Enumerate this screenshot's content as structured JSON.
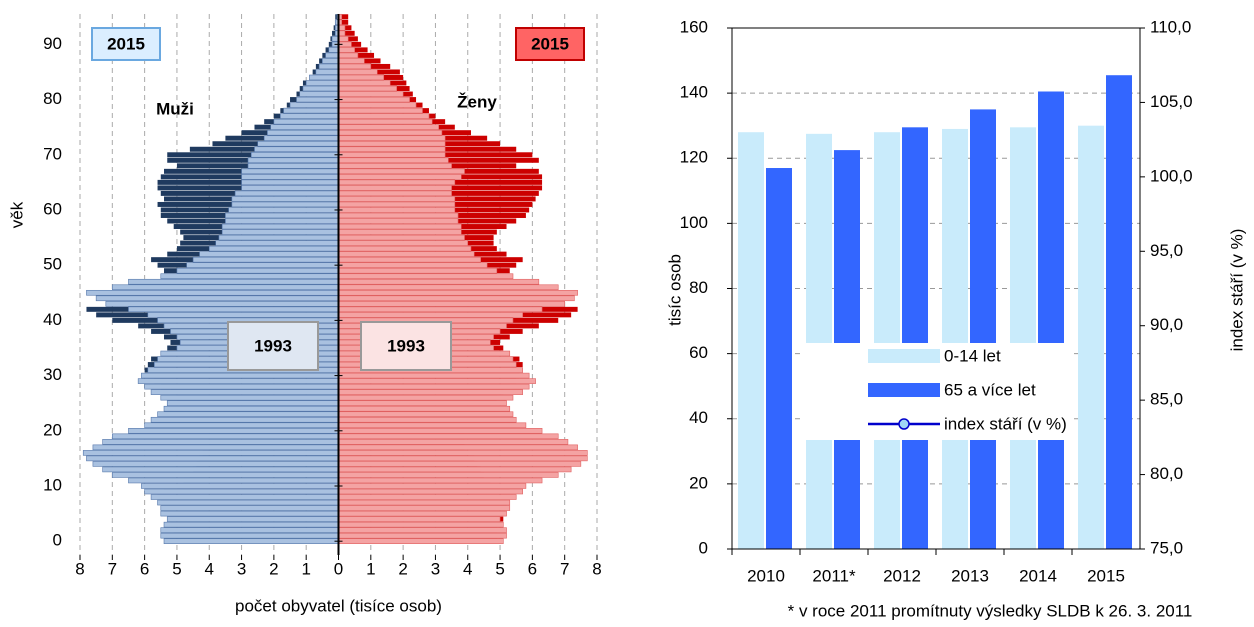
{
  "chart_data": [
    {
      "type": "pyramid",
      "xlabel": "počet obyvatel (tisíce osob)",
      "ylabel": "věk",
      "ylim": [
        -2.5,
        95.5
      ],
      "yticks": [
        0,
        10,
        20,
        30,
        40,
        50,
        60,
        70,
        80,
        90
      ],
      "grid": true,
      "ages": [
        0,
        1,
        2,
        3,
        4,
        5,
        6,
        7,
        8,
        9,
        10,
        11,
        12,
        13,
        14,
        15,
        16,
        17,
        18,
        19,
        20,
        21,
        22,
        23,
        24,
        25,
        26,
        27,
        28,
        29,
        30,
        31,
        32,
        33,
        34,
        35,
        36,
        37,
        38,
        39,
        40,
        41,
        42,
        43,
        44,
        45,
        46,
        47,
        48,
        49,
        50,
        51,
        52,
        53,
        54,
        55,
        56,
        57,
        58,
        59,
        60,
        61,
        62,
        63,
        64,
        65,
        66,
        67,
        68,
        69,
        70,
        71,
        72,
        73,
        74,
        75,
        76,
        77,
        78,
        79,
        80,
        81,
        82,
        83,
        84,
        85,
        86,
        87,
        88,
        89,
        90,
        91,
        92,
        93,
        94,
        95
      ],
      "left": {
        "label": "Muži",
        "xlim": [
          8,
          0
        ],
        "xticks": [
          8,
          7,
          6,
          5,
          4,
          3,
          2,
          1,
          0
        ],
        "series": [
          {
            "name": "2015",
            "color": "#1f3a5f",
            "values": [
              5.3,
              5.2,
              5.1,
              5.2,
              5.3,
              5.4,
              5.5,
              5.5,
              5.6,
              5.4,
              5.0,
              4.8,
              4.6,
              4.5,
              4.4,
              4.3,
              4.2,
              4.0,
              4.0,
              4.0,
              4.1,
              4.2,
              4.4,
              4.5,
              4.6,
              4.8,
              5.0,
              5.2,
              5.5,
              5.7,
              5.9,
              6.0,
              5.9,
              5.8,
              5.5,
              5.3,
              5.2,
              5.4,
              5.8,
              6.2,
              7.0,
              7.5,
              7.8,
              7.2,
              6.3,
              6.0,
              5.6,
              5.3,
              5.2,
              5.4,
              5.6,
              5.8,
              5.3,
              5.0,
              4.9,
              4.8,
              4.9,
              5.1,
              5.3,
              5.5,
              5.5,
              5.6,
              5.4,
              5.5,
              5.6,
              5.6,
              5.5,
              5.4,
              5.0,
              5.3,
              5.3,
              4.6,
              3.9,
              3.5,
              3.0,
              2.6,
              2.3,
              2.0,
              1.8,
              1.6,
              1.5,
              1.3,
              1.2,
              1.1,
              0.9,
              0.8,
              0.7,
              0.6,
              0.5,
              0.4,
              0.3,
              0.25,
              0.2,
              0.15,
              0.1,
              0.1
            ]
          },
          {
            "name": "1993",
            "color": "#a9c1e0",
            "values": [
              5.4,
              5.5,
              5.5,
              5.4,
              5.3,
              5.5,
              5.5,
              5.6,
              5.8,
              6.0,
              6.1,
              6.5,
              7.0,
              7.3,
              7.6,
              7.8,
              7.9,
              7.6,
              7.3,
              7.0,
              6.5,
              6.0,
              5.8,
              5.6,
              5.4,
              5.3,
              5.5,
              5.8,
              6.0,
              6.2,
              6.1,
              5.9,
              5.7,
              5.6,
              5.5,
              5.0,
              4.9,
              5.0,
              5.2,
              5.4,
              5.6,
              5.9,
              6.5,
              7.2,
              7.5,
              7.8,
              7.0,
              6.5,
              5.5,
              5.0,
              4.7,
              4.5,
              4.3,
              4.0,
              3.8,
              3.7,
              3.6,
              3.6,
              3.5,
              3.5,
              3.4,
              3.3,
              3.3,
              3.2,
              3.0,
              3.0,
              3.0,
              3.0,
              2.8,
              2.8,
              2.7,
              2.6,
              2.5,
              2.3,
              2.2,
              2.1,
              2.0,
              1.8,
              1.7,
              1.5,
              1.3,
              1.2,
              1.1,
              1.0,
              0.9,
              0.7,
              0.6,
              0.5,
              0.4,
              0.3,
              0.2,
              0.2,
              0.1,
              0.1,
              0.1,
              0.05
            ]
          }
        ]
      },
      "right": {
        "label": "Ženy",
        "xlim": [
          0,
          8
        ],
        "xticks": [
          1,
          2,
          3,
          4,
          5,
          6,
          7,
          8
        ],
        "series": [
          {
            "name": "2015",
            "color": "#cc0000",
            "values": [
              5.0,
              4.9,
              4.9,
              5.0,
              5.1,
              5.2,
              5.2,
              5.3,
              5.4,
              5.3,
              5.0,
              4.7,
              4.5,
              4.4,
              4.3,
              4.2,
              4.0,
              3.9,
              3.9,
              3.9,
              4.0,
              4.1,
              4.2,
              4.4,
              4.5,
              4.7,
              4.9,
              5.1,
              5.3,
              5.5,
              5.6,
              5.7,
              5.7,
              5.6,
              5.3,
              5.1,
              5.0,
              5.3,
              5.7,
              6.2,
              6.8,
              7.2,
              7.4,
              7.0,
              6.2,
              5.8,
              5.5,
              5.2,
              5.1,
              5.3,
              5.5,
              5.7,
              5.2,
              4.9,
              4.8,
              4.8,
              4.9,
              5.2,
              5.5,
              5.8,
              5.9,
              6.0,
              6.1,
              6.2,
              6.3,
              6.3,
              6.3,
              6.2,
              5.5,
              6.2,
              6.0,
              5.5,
              5.0,
              4.6,
              4.1,
              3.6,
              3.3,
              3.0,
              2.8,
              2.6,
              2.4,
              2.3,
              2.2,
              2.1,
              2.0,
              1.9,
              1.6,
              1.3,
              1.1,
              0.9,
              0.7,
              0.6,
              0.5,
              0.4,
              0.3,
              0.3
            ]
          },
          {
            "name": "1993",
            "color": "#f4a3a3",
            "values": [
              5.1,
              5.2,
              5.2,
              5.1,
              5.0,
              5.2,
              5.3,
              5.3,
              5.5,
              5.7,
              5.8,
              6.3,
              6.8,
              7.2,
              7.5,
              7.7,
              7.7,
              7.4,
              7.1,
              6.8,
              6.3,
              5.8,
              5.5,
              5.4,
              5.3,
              5.2,
              5.4,
              5.7,
              5.9,
              6.1,
              5.9,
              5.7,
              5.5,
              5.4,
              5.3,
              4.8,
              4.7,
              4.8,
              5.0,
              5.2,
              5.4,
              5.7,
              6.3,
              7.0,
              7.3,
              7.4,
              6.8,
              6.2,
              5.4,
              4.9,
              4.6,
              4.4,
              4.2,
              4.1,
              4.0,
              3.9,
              3.8,
              3.8,
              3.7,
              3.7,
              3.6,
              3.6,
              3.6,
              3.5,
              3.5,
              3.6,
              3.8,
              3.9,
              3.5,
              3.4,
              3.3,
              3.3,
              3.3,
              3.3,
              3.2,
              3.1,
              2.9,
              2.8,
              2.6,
              2.4,
              2.2,
              2.0,
              1.8,
              1.6,
              1.4,
              1.2,
              1.0,
              0.8,
              0.6,
              0.5,
              0.4,
              0.3,
              0.2,
              0.2,
              0.1,
              0.1
            ]
          }
        ]
      }
    },
    {
      "type": "bar",
      "ylabel": "tisíc osob",
      "y2label": "index stáří (v %)",
      "note": "* v roce 2011 promítnuty výsledky SLDB k 26. 3. 2011",
      "categories": [
        "2010",
        "2011*",
        "2012",
        "2013",
        "2014",
        "2015"
      ],
      "ylim": [
        0,
        160
      ],
      "yticks": [
        0,
        20,
        40,
        60,
        80,
        100,
        120,
        140,
        160
      ],
      "y2lim": [
        75,
        110
      ],
      "y2ticks": [
        {
          "value": 75,
          "label": "75,0"
        },
        {
          "value": 80,
          "label": "80,0"
        },
        {
          "value": 85,
          "label": "85,0"
        },
        {
          "value": 90,
          "label": "90,0"
        },
        {
          "value": 95,
          "label": "95,0"
        },
        {
          "value": 100,
          "label": "100,0"
        },
        {
          "value": 105,
          "label": "105,0"
        },
        {
          "value": 110,
          "label": "110,0"
        }
      ],
      "grid": true,
      "series": [
        {
          "name": "0-14 let",
          "color": "#c9ebfb",
          "values": [
            128,
            127.5,
            128,
            129,
            129.5,
            130
          ]
        },
        {
          "name": "65 a více let",
          "color": "#3366ff",
          "values": [
            117,
            122.5,
            129.5,
            135,
            140.5,
            145.5
          ]
        },
        {
          "name": "index stáří (v %)",
          "color": "#0000cc",
          "axis": "y2",
          "values": [
            null,
            null,
            null,
            null,
            null,
            null
          ]
        }
      ]
    }
  ]
}
